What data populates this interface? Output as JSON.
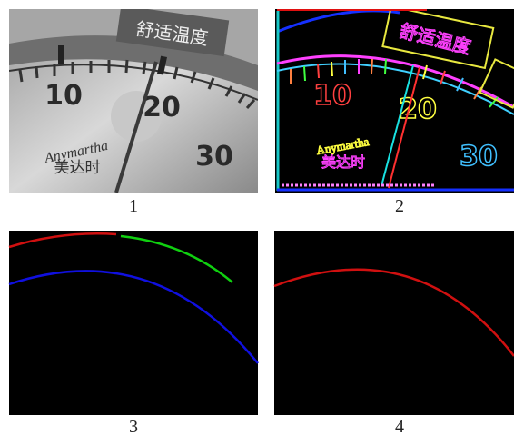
{
  "panels": [
    {
      "caption": "1"
    },
    {
      "caption": "2"
    },
    {
      "caption": "3"
    },
    {
      "caption": "4"
    }
  ],
  "gauge": {
    "numbers": [
      "10",
      "20",
      "30"
    ],
    "banner": "舒适温度",
    "brand": "Anymartha",
    "brand_cn": "美达时"
  }
}
